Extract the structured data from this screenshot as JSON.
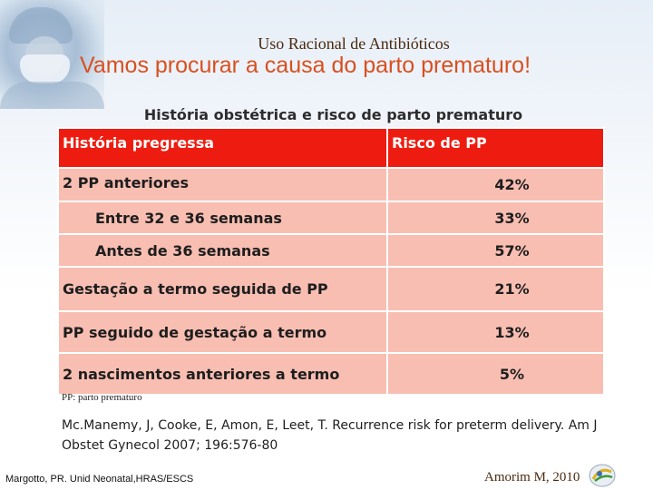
{
  "header": {
    "subtitle": "Uso Racional de Antibióticos",
    "title": "Vamos procurar a causa do parto prematuro!"
  },
  "table": {
    "caption": "História obstétrica e risco de parto prematuro",
    "headers": [
      "História pregressa",
      "Risco de PP"
    ],
    "rows": [
      {
        "history": "2 PP anteriores",
        "risk": "42%"
      },
      {
        "history": "Entre 32 e 36 semanas",
        "risk": "33%"
      },
      {
        "history": "Antes de 36 semanas",
        "risk": "57%"
      },
      {
        "history": "Gestação a termo seguida de PP",
        "risk": "21%"
      },
      {
        "history": "PP seguido de gestação a termo",
        "risk": "13%"
      },
      {
        "history": "2 nascimentos anteriores a termo",
        "risk": "5%"
      }
    ]
  },
  "footnote": "PP: parto prematuro",
  "citation": "Mc.Manemy, J, Cooke, E, Amon, E, Leet, T. Recurrence risk for preterm delivery. Am J Obstet Gynecol 2007; 196:576-80",
  "footer": {
    "left": "Margotto, PR. Unid Neonatal,HRAS/ESCS",
    "right": "Amorim M, 2010"
  },
  "colors": {
    "title": "#d8501f",
    "header_bg": "#ee1c10",
    "cell_bg": "#f8beb2"
  },
  "icons": {
    "corner_photo": "surgeon-photo",
    "logo": "globe-logo-icon"
  }
}
